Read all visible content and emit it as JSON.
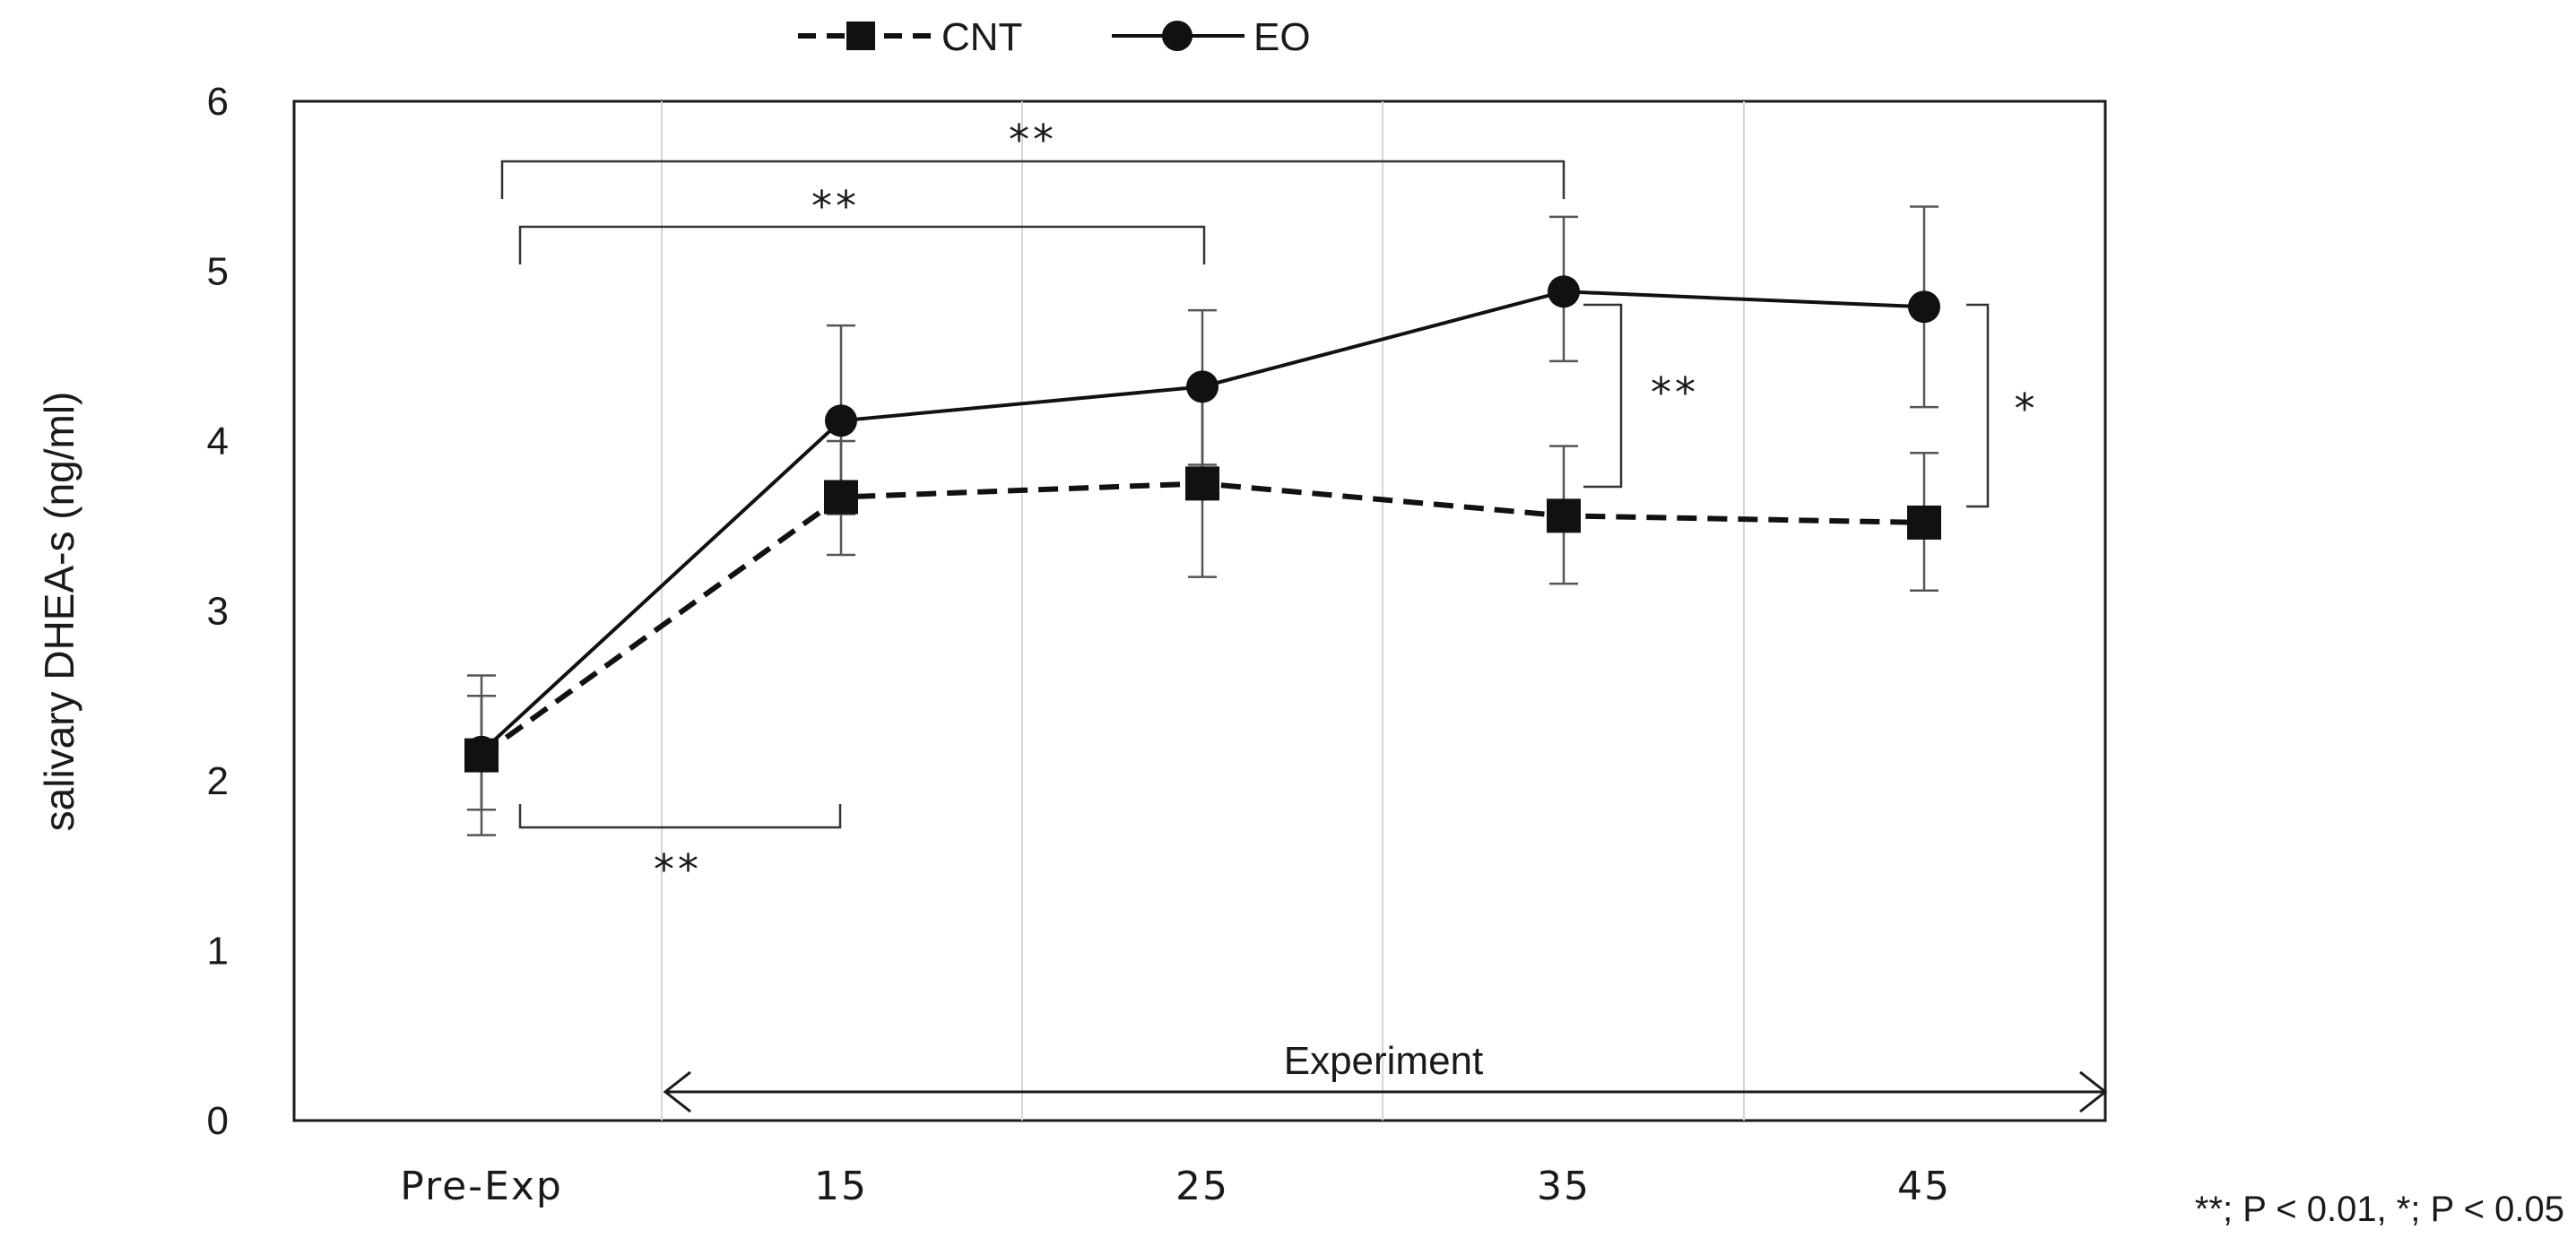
{
  "chart_data": {
    "type": "line",
    "title": "",
    "xlabel": "",
    "ylabel": "salivary DHEA-s (ng/ml)",
    "ylim": [
      0,
      6
    ],
    "yticks": [
      "0",
      "1",
      "2",
      "3",
      "4",
      "5",
      "6"
    ],
    "categories": [
      "Pre-Exp",
      "15",
      "25",
      "35",
      "45"
    ],
    "series": [
      {
        "name": "CNT",
        "style": "dashed",
        "marker": "square",
        "values": [
          2.15,
          3.67,
          3.75,
          3.56,
          3.52
        ],
        "err_low": [
          1.68,
          3.33,
          3.2,
          3.16,
          3.12
        ],
        "err_high": [
          2.5,
          4.0,
          4.33,
          3.97,
          3.93
        ]
      },
      {
        "name": "EO",
        "style": "solid",
        "marker": "circle",
        "values": [
          2.17,
          4.12,
          4.32,
          4.88,
          4.79
        ],
        "err_low": [
          1.83,
          3.57,
          3.86,
          4.47,
          4.2
        ],
        "err_high": [
          2.62,
          4.68,
          4.77,
          5.32,
          5.38
        ]
      }
    ],
    "grid": "vertical",
    "legend_position": "top-center",
    "annotations": {
      "significance": [
        {
          "label": "**",
          "from": "Pre-Exp",
          "to": "35",
          "series": "EO"
        },
        {
          "label": "**",
          "from": "Pre-Exp",
          "to": "25",
          "series": "EO"
        },
        {
          "label": "**",
          "from": "Pre-Exp",
          "to": "15",
          "series": "CNT"
        },
        {
          "label": "**",
          "between": [
            "CNT",
            "EO"
          ],
          "at": "35"
        },
        {
          "label": "*",
          "between": [
            "CNT",
            "EO"
          ],
          "at": "45"
        }
      ],
      "experiment_label": "Experiment",
      "footnote": "**; P < 0.01, *; P < 0.05"
    }
  }
}
